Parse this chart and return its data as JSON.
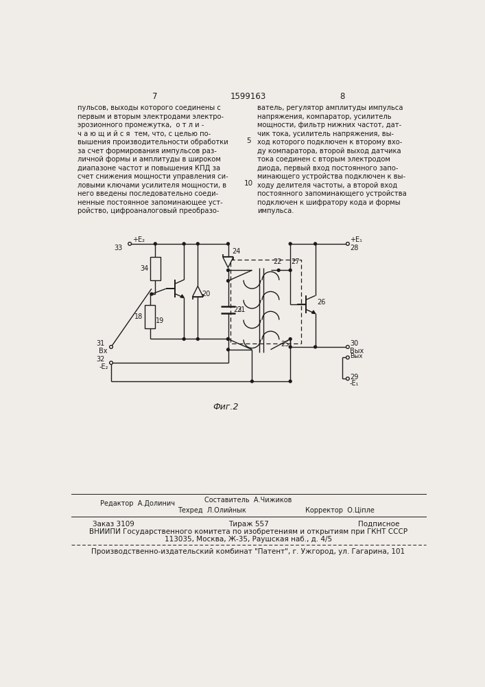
{
  "page_number_left": "7",
  "page_number_center": "1599163",
  "page_number_right": "8",
  "col1_lines": [
    "пульсов, выходы которого соединены с",
    "первым и вторым электродами электро-",
    "эрозионного промежутка,  о т л и -",
    "ч а ю щ и й с я  тем, что, с целью по-",
    "вышения производительности обработки",
    "за счет формирования импульсов раз-",
    "личной формы и амплитуды в широком",
    "диапазоне частот и повышения КПД за",
    "счет снижения мощности управления си-",
    "ловыми ключами усилителя мощности, в",
    "него введены последовательно соеди-",
    "ненные постоянное запоминающее уст-",
    "ройство, цифроаналоговый преобразо-"
  ],
  "col2_lines": [
    "ватель, регулятор амплитуды импульса",
    "напряжения, компаратор, усилитель",
    "мощности, фильтр нижних частот, дат-",
    "чик тока, усилитель напряжения, вы-",
    "ход которого подключен к второму вхо-",
    "ду компаратора, второй выход датчика",
    "тока соединен с вторым электродом",
    "диода, первый вход постоянного запо-",
    "минающего устройства подключен к вы-",
    "ходу делителя частоты, а второй вход",
    "постоянного запоминающего устройства",
    "подключен к шифратору кода и формы",
    "импульса."
  ],
  "line_number_5": "5",
  "line_number_10": "10",
  "fig_label": "Фиг.2",
  "footer_editor": "Редактор  А.Долинич",
  "footer_composer": "Составитель  А.Чижиков",
  "footer_techred": "Техред  Л.Олийнык",
  "footer_corrector": "Корректор  О.Цiпле",
  "footer_order": "Заказ 3109",
  "footer_print": "Тираж 557",
  "footer_subscription": "Подписное",
  "footer_vnipi": "ВНИИПИ Государственного комитета по изобретениям и открытиям при ГКНТ СССР",
  "footer_address": "113035, Москва, Ж-35, Раушская наб., д. 4/5",
  "footer_factory": "Производственно-издательский комбинат \"Патент\", г. Ужгород, ул. Гагарина, 101",
  "bg_color": "#f0ede8",
  "text_color": "#1a1a1a",
  "line_color": "#1a1a1a"
}
